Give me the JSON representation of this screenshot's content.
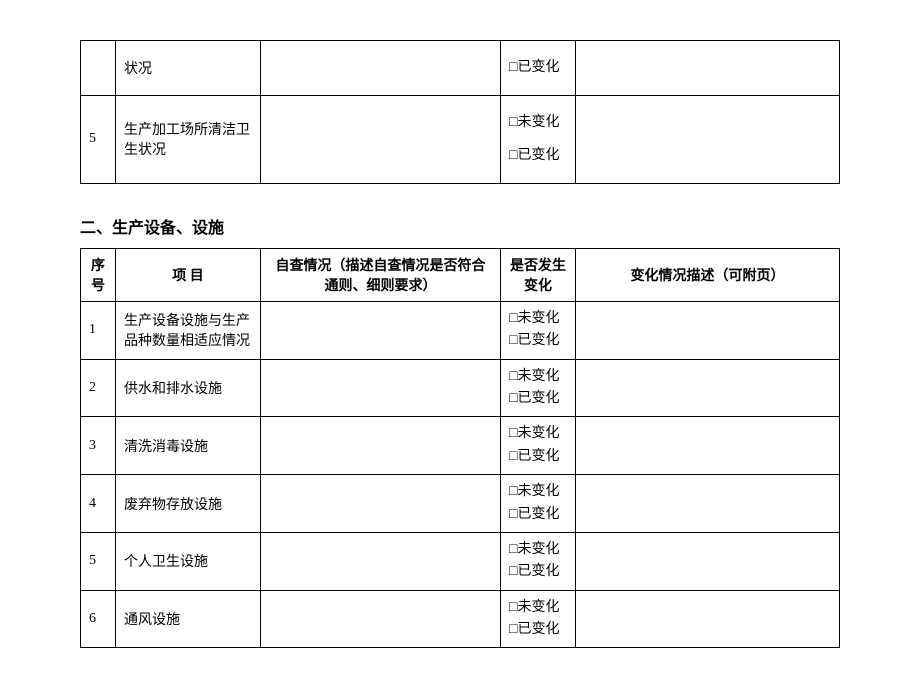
{
  "checkbox_char": "□",
  "unchanged_label": "未变化",
  "changed_label": "已变化",
  "top_table": {
    "rows": [
      {
        "num": "",
        "item": "状况",
        "change_options": [
          "已变化"
        ]
      },
      {
        "num": "5",
        "item": "生产加工场所清洁卫生状况",
        "change_options": [
          "未变化",
          "已变化"
        ]
      }
    ]
  },
  "section2": {
    "title": "二、生产设备、设施",
    "headers": {
      "num": "序号",
      "item": "项 目",
      "check": "自查情况（描述自查情况是否符合通则、细则要求）",
      "change": "是否发生变化",
      "desc": "变化情况描述（可附页）"
    },
    "rows": [
      {
        "num": "1",
        "item": "生产设备设施与生产品种数量相适应情况"
      },
      {
        "num": "2",
        "item": "供水和排水设施"
      },
      {
        "num": "3",
        "item": "清洗消毒设施"
      },
      {
        "num": "4",
        "item": "废弃物存放设施"
      },
      {
        "num": "5",
        "item": "个人卫生设施"
      },
      {
        "num": "6",
        "item": "通风设施"
      }
    ]
  }
}
